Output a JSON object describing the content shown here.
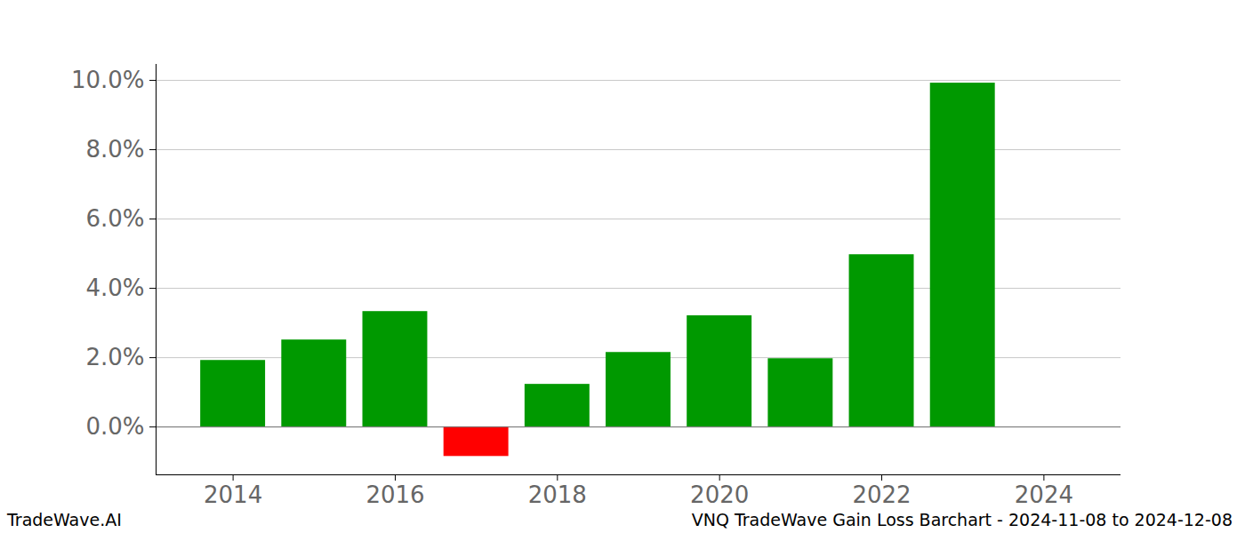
{
  "chart_data": {
    "type": "bar",
    "title": "VNQ TradeWave Gain Loss Barchart - 2024-11-08 to 2024-12-08",
    "caption": "TradeWave.AI",
    "x": [
      2014,
      2015,
      2016,
      2017,
      2018,
      2019,
      2020,
      2021,
      2022,
      2023
    ],
    "values": [
      1.92,
      2.51,
      3.33,
      -0.85,
      1.23,
      2.15,
      3.21,
      1.97,
      4.97,
      9.92
    ],
    "colors": [
      "#009900",
      "#009900",
      "#009900",
      "#ff0000",
      "#009900",
      "#009900",
      "#009900",
      "#009900",
      "#009900",
      "#009900"
    ],
    "xlim": [
      2013.05,
      2024.95
    ],
    "xticks": [
      2014,
      2016,
      2018,
      2020,
      2022,
      2024
    ],
    "ylim": [
      -1.38,
      10.46
    ],
    "yticks": [
      {
        "value": 0,
        "label": "0.0%"
      },
      {
        "value": 2,
        "label": "2.0%"
      },
      {
        "value": 4,
        "label": "4.0%"
      },
      {
        "value": 6,
        "label": "6.0%"
      },
      {
        "value": 8,
        "label": "8.0%"
      },
      {
        "value": 10,
        "label": "10.0%"
      }
    ],
    "grid": true
  }
}
